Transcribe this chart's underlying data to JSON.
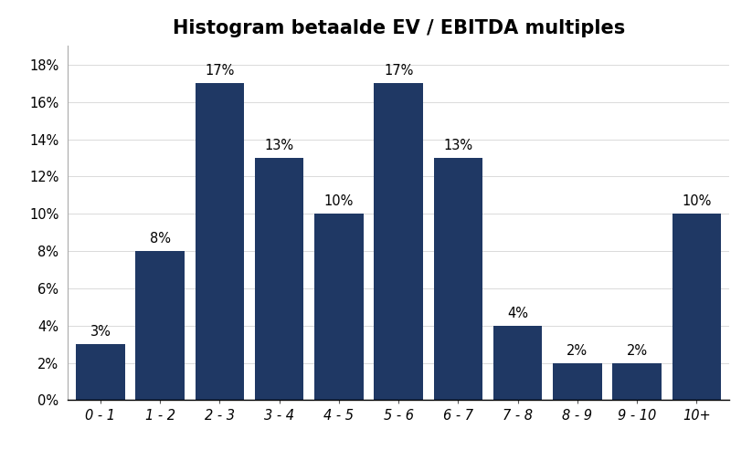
{
  "title": "Histogram betaalde EV / EBITDA multiples",
  "categories": [
    "0 - 1",
    "1 - 2",
    "2 - 3",
    "3 - 4",
    "4 - 5",
    "5 - 6",
    "6 - 7",
    "7 - 8",
    "8 - 9",
    "9 - 10",
    "10+"
  ],
  "values": [
    0.03,
    0.08,
    0.17,
    0.13,
    0.1,
    0.17,
    0.13,
    0.04,
    0.02,
    0.02,
    0.1
  ],
  "labels": [
    "3%",
    "8%",
    "17%",
    "13%",
    "10%",
    "17%",
    "13%",
    "4%",
    "2%",
    "2%",
    "10%"
  ],
  "bar_color": "#1F3864",
  "background_color": "#FFFFFF",
  "ylim": [
    0,
    0.19
  ],
  "yticks": [
    0.0,
    0.02,
    0.04,
    0.06,
    0.08,
    0.1,
    0.12,
    0.14,
    0.16,
    0.18
  ],
  "title_fontsize": 15,
  "label_fontsize": 10.5,
  "tick_fontsize": 10.5,
  "bar_width": 0.82,
  "figsize": [
    8.23,
    5.04
  ],
  "dpi": 100
}
